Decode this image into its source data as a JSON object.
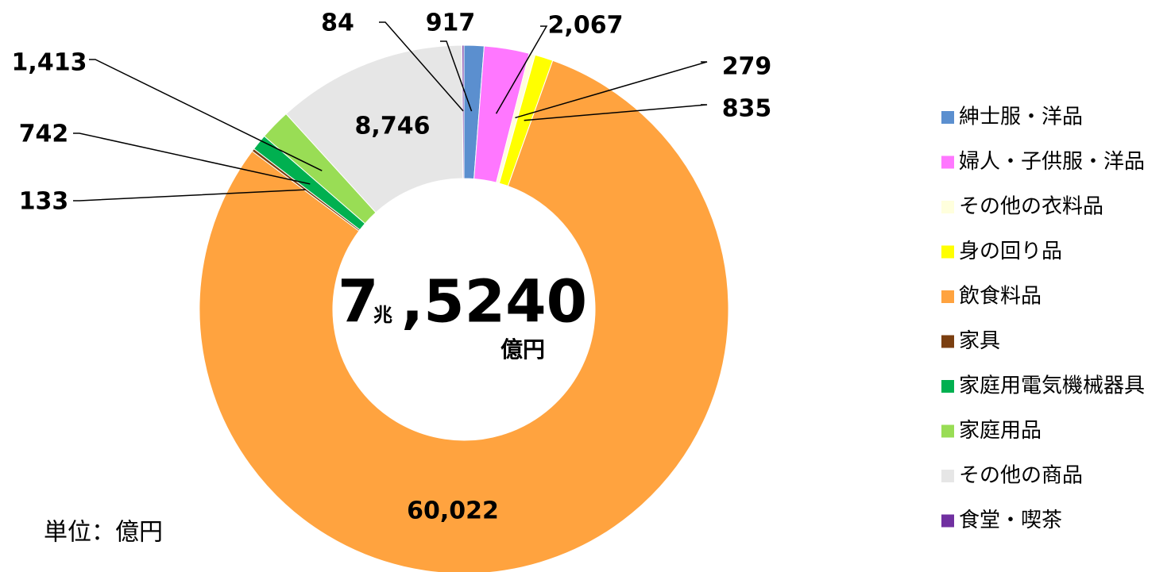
{
  "chart_data": {
    "type": "pie",
    "categories": [
      "紳士服・洋品",
      "婦人・子供服・洋品",
      "その他の衣料品",
      "身の回り品",
      "飲食料品",
      "家具",
      "家庭用電気機械器具",
      "家庭用品",
      "その他の商品",
      "食堂・喫茶"
    ],
    "values": [
      917,
      2067,
      279,
      835,
      60022,
      133,
      742,
      1413,
      8746,
      84
    ],
    "value_labels": [
      "917",
      "2,067",
      "279",
      "835",
      "60,022",
      "133",
      "742",
      "1,413",
      "8,746",
      "84"
    ],
    "colors": [
      "#5b8fcf",
      "#ff77ff",
      "#ffffdd",
      "#ffff00",
      "#ffa33f",
      "#7b3f10",
      "#00b050",
      "#99dd55",
      "#e6e6e6",
      "#7030a0"
    ],
    "center_label": {
      "number": "7",
      "unit1": "兆",
      "number2": ",5240",
      "unit2": "億円"
    },
    "note": "単位：億円",
    "legend": "right"
  }
}
